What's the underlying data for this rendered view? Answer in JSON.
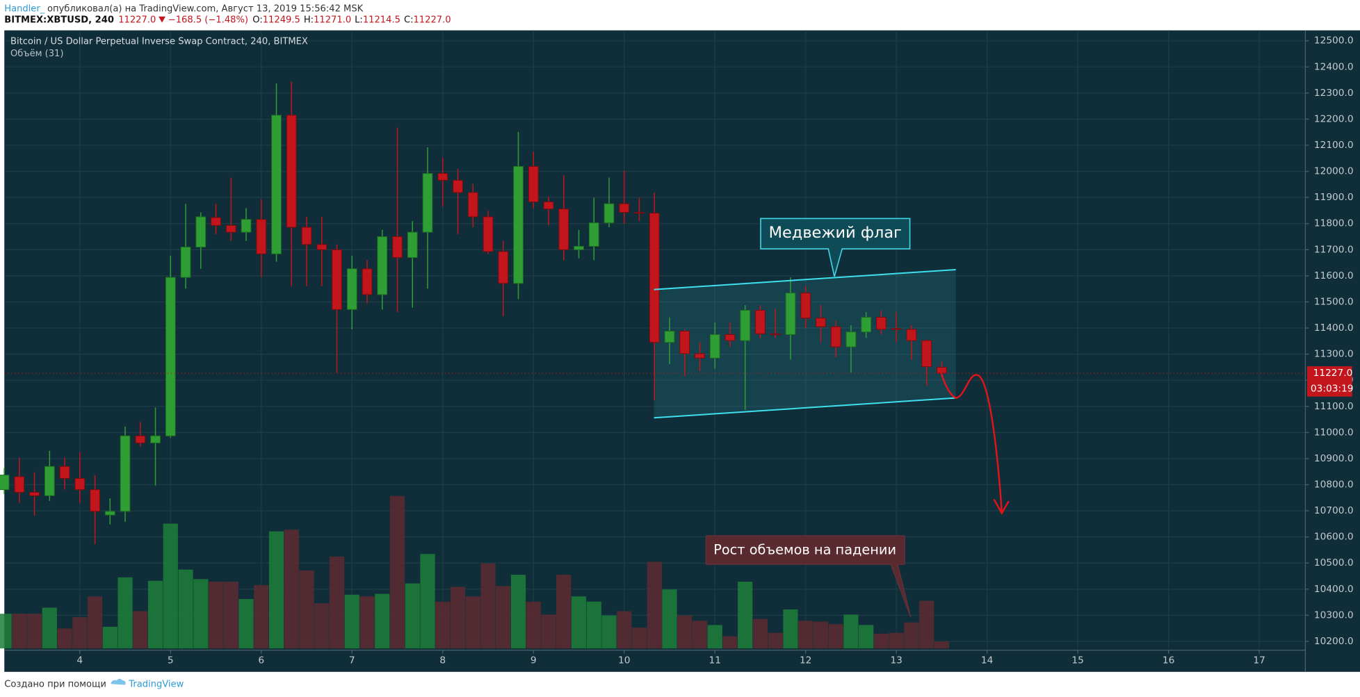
{
  "header": {
    "author": "Handler_",
    "published": "опубликовал(а) на TradingView.com, Август 13, 2019 15:56:42 MSK",
    "symbol": "BITMEX:XBTUSD, 240",
    "price": "11227.0",
    "change": "−168.5 (−1.48%)",
    "ohlc": [
      {
        "label": "O:",
        "value": "11249.5"
      },
      {
        "label": "H:",
        "value": "11271.0"
      },
      {
        "label": "L:",
        "value": "11214.5"
      },
      {
        "label": "C:",
        "value": "11227.0"
      }
    ]
  },
  "footer": {
    "text": "Создано при помощи",
    "brand": "TradingView"
  },
  "chart_data": {
    "type": "candlestick",
    "title": "Bitcoin / US Dollar Perpetual Inverse Swap Contract, 240, BITMEX",
    "subtitle": "Объём (31)",
    "annotations": [
      "Медвежий флаг",
      "Рост объемов на падении"
    ],
    "last_label": "11227.0",
    "countdown": "03:03:19",
    "up_color": "#2f9e34",
    "down_color": "#c3161c",
    "volume_up_color": "#1d7f3a",
    "volume_down_color": "#5e2a31",
    "grid": true,
    "xlim": [
      3.168,
      17.508
    ],
    "ylim": [
      10173,
      12540
    ],
    "xticks": [
      4,
      5,
      6,
      7,
      8,
      9,
      10,
      11,
      12,
      13,
      14,
      15,
      16,
      17
    ],
    "yticks": [
      {
        "value": 10200,
        "label": "10200.0"
      },
      {
        "value": 10300,
        "label": "10300.0"
      },
      {
        "value": 10400,
        "label": "10400.0"
      },
      {
        "value": 10500,
        "label": "10500.0"
      },
      {
        "value": 10600,
        "label": "10600.0"
      },
      {
        "value": 10700,
        "label": "10700.0"
      },
      {
        "value": 10800,
        "label": "10800.0"
      },
      {
        "value": 10900,
        "label": "10900.0"
      },
      {
        "value": 11000,
        "label": "11000.0"
      },
      {
        "value": 11100,
        "label": "11100.0"
      },
      {
        "value": 11200,
        "label": "11200.0"
      },
      {
        "value": 11300,
        "label": "11300.0"
      },
      {
        "value": 11400,
        "label": "11400.0"
      },
      {
        "value": 11500,
        "label": "11500.0"
      },
      {
        "value": 11600,
        "label": "11600.0"
      },
      {
        "value": 11700,
        "label": "11700.0"
      },
      {
        "value": 11800,
        "label": "11800.0"
      },
      {
        "value": 11900,
        "label": "11900.0"
      },
      {
        "value": 12000,
        "label": "12000.0"
      },
      {
        "value": 12100,
        "label": "12100.0"
      },
      {
        "value": 12200,
        "label": "12200.0"
      },
      {
        "value": 12300,
        "label": "12300.0"
      },
      {
        "value": 12400,
        "label": "12400.0"
      },
      {
        "value": 12500,
        "label": "12500.0"
      }
    ],
    "x": [
      3.1667,
      3.3333,
      3.5,
      3.6667,
      3.8333,
      4,
      4.1667,
      4.3333,
      4.5,
      4.6667,
      4.8333,
      5,
      5.1667,
      5.3333,
      5.5,
      5.6667,
      5.8333,
      6,
      6.1667,
      6.3333,
      6.5,
      6.6667,
      6.8333,
      7,
      7.1667,
      7.3333,
      7.5,
      7.6667,
      7.8333,
      8,
      8.1667,
      8.3333,
      8.5,
      8.6667,
      8.8333,
      9,
      9.1667,
      9.3333,
      9.5,
      9.6667,
      9.8333,
      10,
      10.1667,
      10.3333,
      10.5,
      10.6667,
      10.8333,
      11,
      11.1667,
      11.3333,
      11.5,
      11.6667,
      11.8333,
      12,
      12.1667,
      12.3333,
      12.5,
      12.6667,
      12.8333,
      13,
      13.1667,
      13.3333,
      13.5
    ],
    "open": [
      10781,
      10831,
      10771,
      10758,
      10870,
      10824,
      10781,
      10684,
      10698,
      10987,
      10960,
      10987,
      11594,
      11710,
      11823,
      11793,
      11767,
      11816,
      11684,
      12215,
      11786,
      11720,
      11700,
      11471,
      11627,
      11528,
      11750,
      11670,
      11767,
      11992,
      11966,
      11919,
      11826,
      11693,
      11571,
      12019,
      11883,
      11856,
      11700,
      11713,
      11803,
      11876,
      11843,
      11840,
      11345,
      11388,
      11302,
      11285,
      11375,
      11352,
      11468,
      11378,
      11375,
      11534,
      11438,
      11405,
      11328,
      11385,
      11441,
      11398,
      11395,
      11352,
      11249.5
    ],
    "high": [
      10864,
      10904,
      10847,
      10930,
      10904,
      10924,
      10837,
      10748,
      11023,
      11040,
      11096,
      11677,
      11876,
      11843,
      11876,
      11976,
      11859,
      11893,
      12337,
      12344,
      11826,
      11826,
      11720,
      11677,
      11660,
      11776,
      12168,
      11810,
      12092,
      12052,
      12009,
      11952,
      11849,
      11733,
      12151,
      12075,
      11903,
      11986,
      11776,
      11899,
      11976,
      12002,
      11899,
      11919,
      11441,
      11395,
      11345,
      11421,
      11421,
      11488,
      11488,
      11474,
      11594,
      11561,
      11488,
      11428,
      11411,
      11461,
      11468,
      11461,
      11411,
      11355,
      11271
    ],
    "low": [
      10764,
      10731,
      10681,
      10738,
      10781,
      10731,
      10572,
      10648,
      10658,
      10947,
      10797,
      10980,
      11551,
      11627,
      11760,
      11733,
      11733,
      11594,
      11654,
      11561,
      11561,
      11561,
      11229,
      11395,
      11494,
      11471,
      11461,
      11478,
      11551,
      11866,
      11760,
      11786,
      11684,
      11445,
      11511,
      11859,
      11793,
      11660,
      11667,
      11660,
      11786,
      11800,
      11810,
      11123,
      11262,
      11216,
      11235,
      11245,
      11328,
      11086,
      11362,
      11362,
      11279,
      11401,
      11345,
      11289,
      11229,
      11362,
      11375,
      11345,
      11279,
      11179,
      11214.5
    ],
    "close": [
      10837,
      10771,
      10758,
      10870,
      10824,
      10781,
      10698,
      10698,
      10987,
      10960,
      10987,
      11594,
      11710,
      11826,
      11793,
      11767,
      11816,
      11684,
      12215,
      11786,
      11720,
      11700,
      11471,
      11627,
      11528,
      11750,
      11670,
      11767,
      11992,
      11966,
      11919,
      11826,
      11693,
      11571,
      12019,
      11883,
      11856,
      11700,
      11713,
      11803,
      11876,
      11843,
      11840,
      11345,
      11388,
      11302,
      11285,
      11375,
      11352,
      11468,
      11378,
      11375,
      11534,
      11438,
      11405,
      11328,
      11385,
      11441,
      11395,
      11395,
      11352,
      11252,
      11227
    ],
    "volume": [
      40,
      40,
      40,
      47,
      23,
      36,
      60,
      25,
      82,
      43,
      78,
      144,
      91,
      80,
      77,
      77,
      57,
      73,
      135,
      137,
      90,
      52,
      106,
      62,
      60,
      63,
      176,
      75,
      109,
      54,
      71,
      60,
      98,
      72,
      85,
      54,
      39,
      85,
      60,
      54,
      38,
      43,
      24,
      100,
      68,
      38,
      32,
      27,
      14,
      77,
      34,
      18,
      45,
      32,
      31,
      28,
      39,
      27,
      17,
      18,
      30,
      55,
      8
    ]
  }
}
